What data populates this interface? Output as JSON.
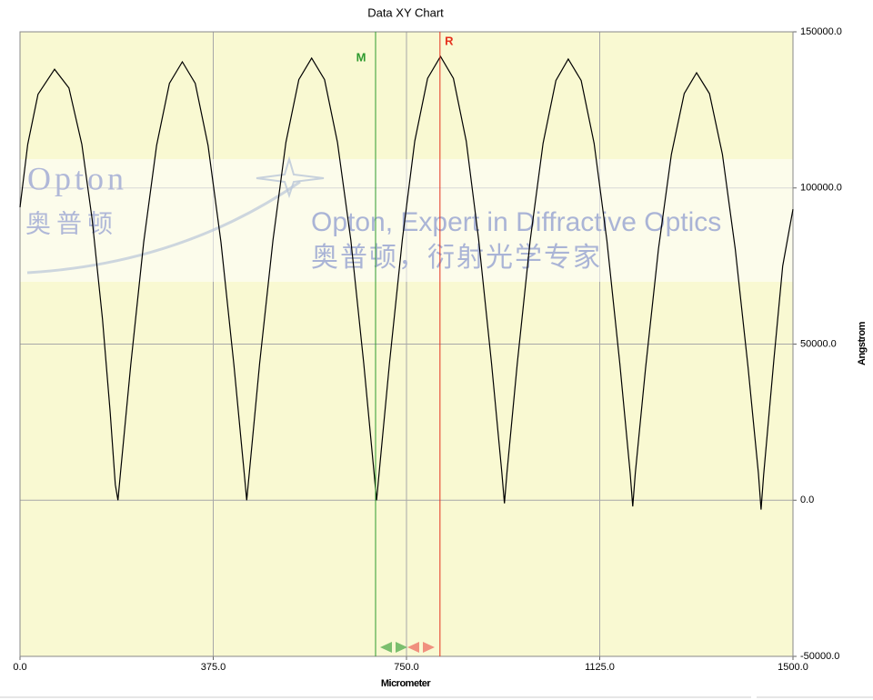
{
  "chart_data": {
    "type": "line",
    "title": "Data XY Chart",
    "x_label": "Micrometer",
    "y_label": "Angstrom",
    "x": [
      0,
      15,
      35,
      67,
      95,
      120,
      140,
      160,
      175,
      185,
      190,
      195,
      215,
      240,
      265,
      290,
      315,
      340,
      365,
      390,
      415,
      435,
      440,
      445,
      465,
      491,
      516,
      541,
      566,
      591,
      616,
      642,
      667,
      687,
      692,
      697,
      717,
      742,
      766,
      791,
      816,
      841,
      866,
      890,
      915,
      935,
      940,
      945,
      965,
      990,
      1015,
      1040,
      1064,
      1089,
      1114,
      1139,
      1164,
      1184,
      1189,
      1194,
      1214,
      1239,
      1264,
      1289,
      1313,
      1338,
      1363,
      1388,
      1413,
      1433,
      1438,
      1443,
      1463,
      1480,
      1500
    ],
    "values": [
      93800,
      114000,
      130000,
      138000,
      132000,
      114000,
      90000,
      58000,
      28000,
      5000,
      0,
      8800,
      43400,
      82600,
      113600,
      133500,
      140400,
      133500,
      113600,
      82600,
      43400,
      8800,
      0,
      8900,
      43800,
      83300,
      114600,
      134700,
      141600,
      134700,
      114600,
      83300,
      43800,
      8900,
      0,
      9000,
      43900,
      83600,
      115000,
      135100,
      142100,
      135100,
      115000,
      83600,
      43900,
      9000,
      -1000,
      8900,
      43700,
      83100,
      114300,
      134400,
      141300,
      134400,
      114300,
      83100,
      43700,
      8900,
      -2000,
      8600,
      42300,
      80500,
      110800,
      130200,
      136900,
      130200,
      110800,
      80500,
      42300,
      8600,
      -3000,
      8000,
      45000,
      75000,
      93200
    ],
    "color": "#000000",
    "xlim": [
      0,
      1500
    ],
    "ylim": [
      -50000,
      150000
    ],
    "xticks": [
      {
        "value": 0,
        "label": "0.0"
      },
      {
        "value": 375,
        "label": "375.0"
      },
      {
        "value": 750,
        "label": "750.0"
      },
      {
        "value": 1125,
        "label": "1125.0"
      },
      {
        "value": 1500,
        "label": "1500.0"
      }
    ],
    "yticks": [
      {
        "value": -50000,
        "label": "-50000.0"
      },
      {
        "value": 0,
        "label": "0.0"
      },
      {
        "value": 50000,
        "label": "50000.0"
      },
      {
        "value": 100000,
        "label": "100000.0"
      },
      {
        "value": 150000,
        "label": "150000.0"
      }
    ],
    "grid": true,
    "background": "#f9f9d2",
    "markers": [
      {
        "label": "M",
        "x": 690,
        "color": "#2e9a2e"
      },
      {
        "label": "R",
        "x": 815,
        "color": "#e5321e"
      }
    ],
    "watermark": {
      "logo": "Opton",
      "logo_cn": "奥普顿",
      "slogan": "Opton, Expert in Diffractive Optics",
      "slogan_cn": "奥普顿，衍射光学专家"
    }
  }
}
